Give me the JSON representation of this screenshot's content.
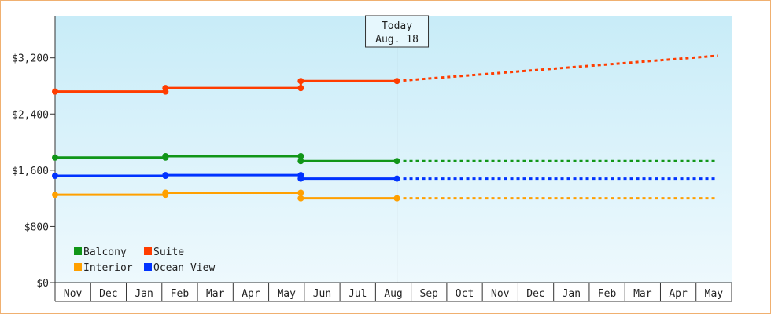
{
  "chart_data": {
    "type": "line",
    "title": "",
    "xlabel": "",
    "ylabel": "",
    "ylim": [
      0,
      3800
    ],
    "y_ticks": [
      {
        "value": 0,
        "label": "$0"
      },
      {
        "value": 800,
        "label": "$800"
      },
      {
        "value": 1600,
        "label": "$1,600"
      },
      {
        "value": 2400,
        "label": "$2,400"
      },
      {
        "value": 3200,
        "label": "$3,200"
      }
    ],
    "months": [
      "Nov",
      "Dec",
      "Jan",
      "Feb",
      "Mar",
      "Apr",
      "May",
      "Jun",
      "Jul",
      "Aug",
      "Sep",
      "Oct",
      "Nov",
      "Dec",
      "Jan",
      "Feb",
      "Mar",
      "Apr",
      "May"
    ],
    "today": {
      "line1": "Today",
      "line2": "Aug. 18",
      "x": 9.6
    },
    "legend_placement": "bottom-left",
    "grid": false,
    "series": [
      {
        "name": "Balcony",
        "color": "#109618",
        "actual": [
          [
            0,
            1780
          ],
          [
            3.1,
            1780
          ],
          [
            3.1,
            1800
          ],
          [
            6.9,
            1800
          ],
          [
            6.9,
            1730
          ],
          [
            9.6,
            1730
          ]
        ],
        "markers": [
          [
            0,
            1780
          ],
          [
            3.1,
            1780
          ],
          [
            3.1,
            1800
          ],
          [
            6.9,
            1800
          ],
          [
            6.9,
            1730
          ],
          [
            9.6,
            1730
          ]
        ],
        "projected": [
          [
            9.6,
            1730
          ],
          [
            18.6,
            1730
          ]
        ]
      },
      {
        "name": "Suite",
        "color": "#ff3d00",
        "actual": [
          [
            0,
            2720
          ],
          [
            3.1,
            2720
          ],
          [
            3.1,
            2770
          ],
          [
            6.9,
            2770
          ],
          [
            6.9,
            2870
          ],
          [
            9.6,
            2870
          ]
        ],
        "markers": [
          [
            0,
            2720
          ],
          [
            3.1,
            2720
          ],
          [
            3.1,
            2770
          ],
          [
            6.9,
            2770
          ],
          [
            6.9,
            2870
          ],
          [
            9.6,
            2870
          ]
        ],
        "projected": [
          [
            9.6,
            2870
          ],
          [
            18.6,
            3230
          ]
        ]
      },
      {
        "name": "Interior",
        "color": "#ffa000",
        "actual": [
          [
            0,
            1250
          ],
          [
            3.1,
            1250
          ],
          [
            3.1,
            1280
          ],
          [
            6.9,
            1280
          ],
          [
            6.9,
            1200
          ],
          [
            9.6,
            1200
          ]
        ],
        "markers": [
          [
            0,
            1250
          ],
          [
            3.1,
            1250
          ],
          [
            3.1,
            1280
          ],
          [
            6.9,
            1280
          ],
          [
            6.9,
            1200
          ],
          [
            9.6,
            1200
          ]
        ],
        "projected": [
          [
            9.6,
            1200
          ],
          [
            18.6,
            1200
          ]
        ]
      },
      {
        "name": "Ocean View",
        "color": "#0033ff",
        "actual": [
          [
            0,
            1520
          ],
          [
            3.1,
            1520
          ],
          [
            3.1,
            1530
          ],
          [
            6.9,
            1530
          ],
          [
            6.9,
            1480
          ],
          [
            9.6,
            1480
          ]
        ],
        "markers": [
          [
            0,
            1520
          ],
          [
            3.1,
            1520
          ],
          [
            3.1,
            1530
          ],
          [
            6.9,
            1530
          ],
          [
            6.9,
            1480
          ],
          [
            9.6,
            1480
          ]
        ],
        "projected": [
          [
            9.6,
            1480
          ],
          [
            18.6,
            1480
          ]
        ]
      }
    ]
  }
}
